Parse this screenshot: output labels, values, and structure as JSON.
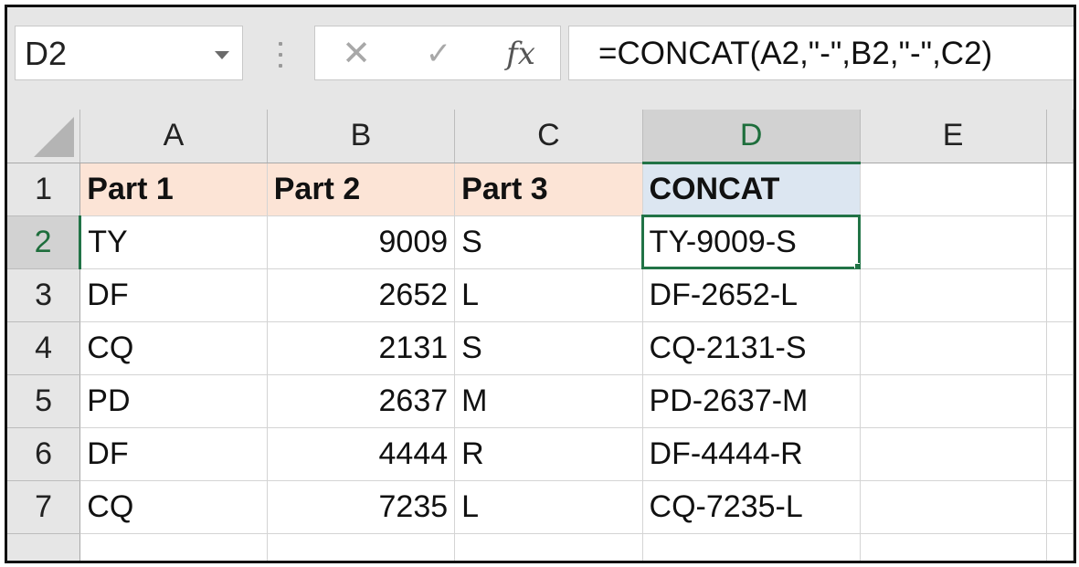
{
  "name_box": {
    "value": "D2"
  },
  "formula_bar": {
    "cancel_glyph": "✕",
    "enter_glyph": "✓",
    "insert_function_glyph": "fx",
    "formula": "=CONCAT(A2,\"-\",B2,\"-\",C2)"
  },
  "columns": [
    "A",
    "B",
    "C",
    "D",
    "E"
  ],
  "rows": [
    {
      "num": "1",
      "cells": [
        "Part 1",
        "Part 2",
        "Part 3",
        "CONCAT",
        ""
      ]
    },
    {
      "num": "2",
      "cells": [
        "TY",
        "9009",
        "S",
        "TY-9009-S",
        ""
      ]
    },
    {
      "num": "3",
      "cells": [
        "DF",
        "2652",
        "L",
        "DF-2652-L",
        ""
      ]
    },
    {
      "num": "4",
      "cells": [
        "CQ",
        "2131",
        "S",
        "CQ-2131-S",
        ""
      ]
    },
    {
      "num": "5",
      "cells": [
        "PD",
        "2637",
        "M",
        "PD-2637-M",
        ""
      ]
    },
    {
      "num": "6",
      "cells": [
        "DF",
        "4444",
        "R",
        "DF-4444-R",
        ""
      ]
    },
    {
      "num": "7",
      "cells": [
        "CQ",
        "7235",
        "L",
        "CQ-7235-L",
        ""
      ]
    }
  ],
  "selection": {
    "column": "D",
    "row": "2"
  },
  "colors": {
    "header_fill": "#fce4d6",
    "concat_header_fill": "#dce6f1",
    "selection_green": "#217346"
  }
}
